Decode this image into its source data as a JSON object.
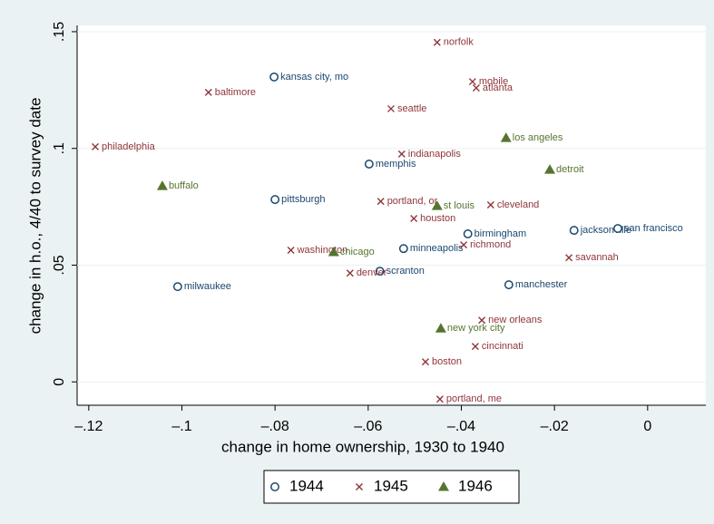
{
  "chart_data": {
    "type": "scatter",
    "x_label": "change in home ownership, 1930 to 1940",
    "y_label": "change in h.o., 4/40 to survey date",
    "xlim": [
      -0.1225,
      0.0125
    ],
    "ylim": [
      -0.01,
      0.1527
    ],
    "xticks": [
      {
        "value": -0.12,
        "label": "–.12"
      },
      {
        "value": -0.1,
        "label": "–.1"
      },
      {
        "value": -0.08,
        "label": "–.08"
      },
      {
        "value": -0.06,
        "label": "–.06"
      },
      {
        "value": -0.04,
        "label": "–.04"
      },
      {
        "value": -0.02,
        "label": "–.02"
      },
      0
    ],
    "yticks": [
      0,
      {
        "value": 0.05,
        "label": ".05"
      },
      {
        "value": 0.1,
        "label": ".1"
      },
      {
        "value": 0.15,
        "label": ".15"
      }
    ],
    "grid": true,
    "legend": "bottom",
    "series": [
      {
        "name": "1944",
        "color": "#1a476f",
        "marker": "circle",
        "labels": [
          "kansas city, mo",
          "memphis",
          "pittsburgh",
          "birmingham",
          "jacksonville",
          "san francisco",
          "minneapolis",
          "scranton",
          "milwaukee",
          "manchester"
        ],
        "x": [
          -0.0802,
          -0.0598,
          -0.08,
          -0.0386,
          -0.0158,
          -0.0064,
          -0.0524,
          -0.0575,
          -0.1009,
          -0.0298
        ],
        "values": [
          0.1306,
          0.0933,
          0.0781,
          0.0634,
          0.0649,
          0.0657,
          0.0571,
          0.0474,
          0.0408,
          0.0416
        ]
      },
      {
        "name": "1945",
        "color": "#90353b",
        "marker": "x",
        "labels": [
          "norfolk",
          "mobile",
          "atlanta",
          "baltimore",
          "seattle",
          "philadelphia",
          "indianapolis",
          "portland, or",
          "cleveland",
          "houston",
          "richmond",
          "washington",
          "savannah",
          "denver",
          "new orleans",
          "cincinnati",
          "boston",
          "portland, me"
        ],
        "x": [
          -0.0452,
          -0.0376,
          -0.0368,
          -0.0943,
          -0.0551,
          -0.1186,
          -0.0528,
          -0.0573,
          -0.0337,
          -0.0502,
          -0.0395,
          -0.0766,
          -0.0169,
          -0.0639,
          -0.0356,
          -0.037,
          -0.0477,
          -0.0446
        ],
        "values": [
          0.1454,
          0.1286,
          0.1259,
          0.124,
          0.117,
          0.1007,
          0.0976,
          0.0773,
          0.0758,
          0.07,
          0.0587,
          0.0564,
          0.0532,
          0.0466,
          0.0264,
          0.0152,
          0.0086,
          -0.0074
        ]
      },
      {
        "name": "1946",
        "color": "#55752f",
        "marker": "triangle",
        "labels": [
          "los angeles",
          "detroit",
          "buffalo",
          "st louis",
          "chicago",
          "new york city"
        ],
        "x": [
          -0.0304,
          -0.021,
          -0.1042,
          -0.0452,
          -0.0674,
          -0.0444
        ],
        "values": [
          0.1045,
          0.0909,
          0.0839,
          0.0754,
          0.0556,
          0.0229
        ]
      }
    ]
  }
}
